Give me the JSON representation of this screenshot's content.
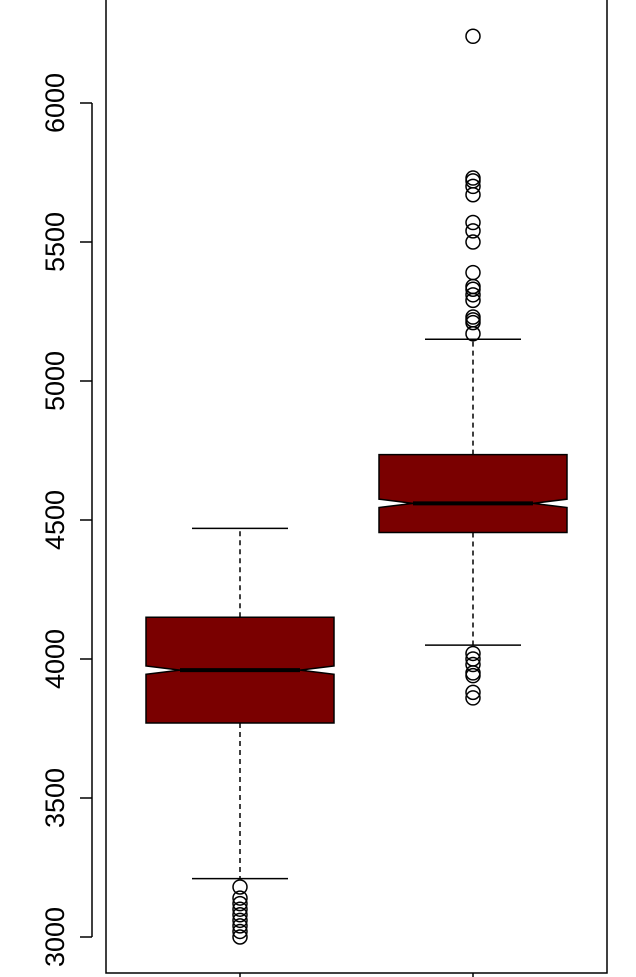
{
  "chart_data": {
    "type": "boxplot",
    "notched": true,
    "box_fill": "#7a0000",
    "y_ticks": [
      "3000",
      "3500",
      "4000",
      "4500",
      "5000",
      "5500",
      "6000"
    ],
    "y_tick_values": [
      3000,
      3500,
      4000,
      4500,
      5000,
      5500,
      6000
    ],
    "series": [
      {
        "whisker_low": 3210,
        "q1": 3770,
        "median": 3960,
        "q3": 4150,
        "whisker_high": 4470,
        "notch_low": 3945,
        "notch_high": 3975,
        "outliers": [
          3180,
          3140,
          3120,
          3100,
          3080,
          3060,
          3040,
          3020,
          3000
        ]
      },
      {
        "whisker_low": 4050,
        "q1": 4455,
        "median": 4560,
        "q3": 4735,
        "whisker_high": 5150,
        "notch_low": 4545,
        "notch_high": 4575,
        "outliers": [
          6240,
          5730,
          5720,
          5700,
          5670,
          5570,
          5540,
          5500,
          5390,
          5340,
          5330,
          5310,
          5290,
          5230,
          5220,
          5210,
          5170,
          4020,
          4000,
          3980,
          3950,
          3940,
          3880,
          3860
        ]
      }
    ]
  }
}
